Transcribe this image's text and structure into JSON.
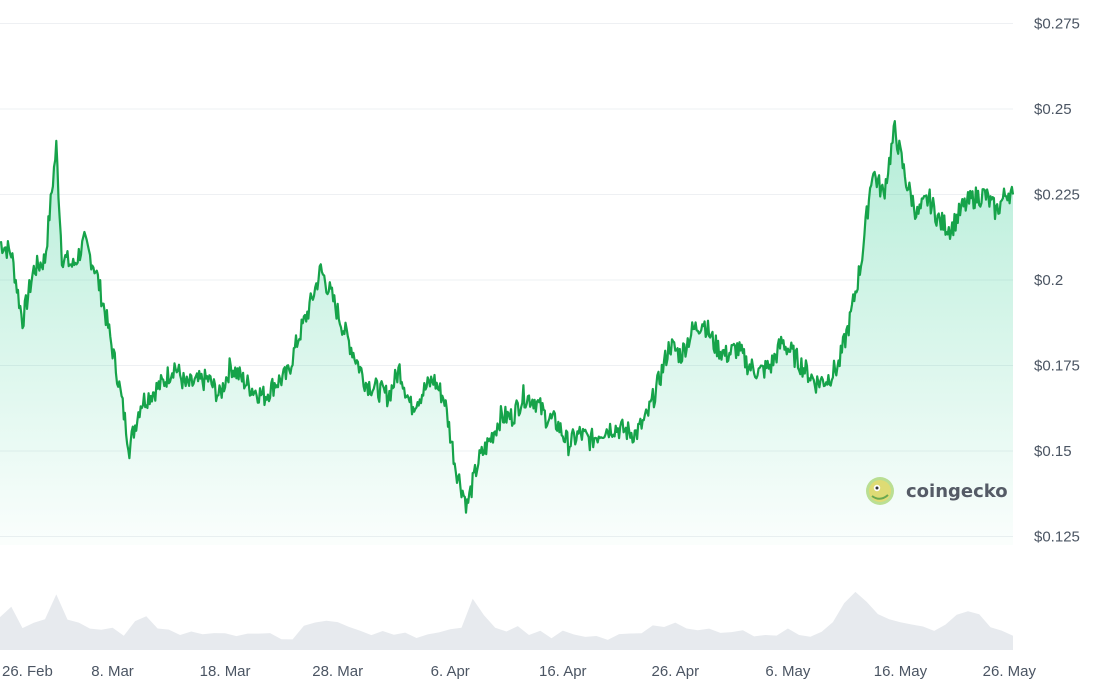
{
  "chart_data": {
    "type": "area",
    "title": "",
    "xlabel": "",
    "ylabel": "",
    "y_axis_position": "right",
    "y_ticks": [
      "$0.275",
      "$0.25",
      "$0.225",
      "$0.2",
      "$0.175",
      "$0.15",
      "$0.125"
    ],
    "y_tick_values": [
      0.275,
      0.25,
      0.225,
      0.2,
      0.175,
      0.15,
      0.125
    ],
    "ylim": [
      0.1225,
      0.2775
    ],
    "x_ticks": [
      "26. Feb",
      "8. Mar",
      "18. Mar",
      "28. Mar",
      "6. Apr",
      "16. Apr",
      "26. Apr",
      "6. May",
      "16. May",
      "26. May"
    ],
    "x_tick_days": [
      0,
      10,
      20,
      30,
      40,
      50,
      60,
      70,
      80,
      90
    ],
    "xlim_days": [
      0,
      90
    ],
    "grid": true,
    "colors": {
      "line": "#16a34a",
      "fill_top": "#16c784",
      "volume": "#e7eaee",
      "grid": "#eef0f3"
    },
    "series": [
      {
        "x_days": [
          0,
          1,
          2,
          3,
          4,
          5,
          5.5,
          6.5,
          7.5,
          8.5,
          9.5,
          10.5,
          11.5,
          12.5,
          13.5,
          14.5,
          15.5,
          16.5,
          17.5,
          18.5,
          19.5,
          20.5,
          21.5,
          22.5,
          23.5,
          24.5,
          25.5,
          26.5,
          27.5,
          28.5,
          29.5,
          30.5,
          31.5,
          32.5,
          33.5,
          34.5,
          35.5,
          36.5,
          37.5,
          38.5,
          39.5,
          40.5,
          41.5,
          42.5,
          43.5,
          44.5,
          45.5,
          46.5,
          47.5,
          48.5,
          49.5,
          50.5,
          51.5,
          52.5,
          53.5,
          54.5,
          55.5,
          56.5,
          57.5,
          58.5,
          59.5,
          60.5,
          61.5,
          62.5,
          63.5,
          64.5,
          65.5,
          66.5,
          67.5,
          68.5,
          69.5,
          70.5,
          71.5,
          72.5,
          73.5,
          74.5,
          75.5,
          76.5,
          77.5,
          78.5,
          79.5,
          80.5,
          81.5,
          82.5,
          83.5,
          84.5,
          85.5,
          86.5,
          87.5,
          88.5,
          89.5,
          90
        ],
        "values": [
          0.211,
          0.208,
          0.188,
          0.203,
          0.206,
          0.239,
          0.207,
          0.204,
          0.211,
          0.203,
          0.188,
          0.171,
          0.151,
          0.164,
          0.167,
          0.17,
          0.175,
          0.169,
          0.17,
          0.171,
          0.166,
          0.175,
          0.171,
          0.168,
          0.166,
          0.17,
          0.172,
          0.183,
          0.192,
          0.203,
          0.195,
          0.186,
          0.178,
          0.17,
          0.168,
          0.166,
          0.174,
          0.163,
          0.167,
          0.171,
          0.165,
          0.145,
          0.134,
          0.147,
          0.153,
          0.16,
          0.16,
          0.166,
          0.165,
          0.16,
          0.158,
          0.152,
          0.155,
          0.153,
          0.156,
          0.157,
          0.156,
          0.155,
          0.16,
          0.17,
          0.181,
          0.178,
          0.185,
          0.188,
          0.181,
          0.178,
          0.18,
          0.175,
          0.173,
          0.175,
          0.182,
          0.178,
          0.174,
          0.17,
          0.171,
          0.175,
          0.188,
          0.205,
          0.232,
          0.225,
          0.244,
          0.229,
          0.219,
          0.224,
          0.217,
          0.215,
          0.221,
          0.224,
          0.225,
          0.22,
          0.226,
          0.225
        ]
      }
    ],
    "volume": {
      "x_days": [
        0,
        1,
        2,
        3,
        4,
        5,
        6,
        7,
        8,
        9,
        10,
        11,
        12,
        13,
        14,
        15,
        16,
        17,
        18,
        19,
        20,
        21,
        22,
        23,
        24,
        25,
        26,
        27,
        28,
        29,
        30,
        31,
        32,
        33,
        34,
        35,
        36,
        37,
        38,
        39,
        40,
        41,
        42,
        43,
        44,
        45,
        46,
        47,
        48,
        49,
        50,
        51,
        52,
        53,
        54,
        55,
        56,
        57,
        58,
        59,
        60,
        61,
        62,
        63,
        64,
        65,
        66,
        67,
        68,
        69,
        70,
        71,
        72,
        73,
        74,
        75,
        76,
        77,
        78,
        79,
        80,
        81,
        82,
        83,
        84,
        85,
        86,
        87,
        88,
        89,
        90
      ],
      "values": [
        0.55,
        0.75,
        0.45,
        0.5,
        0.6,
        1.0,
        0.6,
        0.55,
        0.35,
        0.4,
        0.35,
        0.3,
        0.55,
        0.65,
        0.45,
        0.35,
        0.3,
        0.3,
        0.25,
        0.3,
        0.25,
        0.3,
        0.3,
        0.25,
        0.25,
        0.2,
        0.25,
        0.4,
        0.45,
        0.5,
        0.55,
        0.45,
        0.35,
        0.3,
        0.3,
        0.25,
        0.3,
        0.25,
        0.25,
        0.3,
        0.35,
        0.45,
        0.9,
        0.6,
        0.45,
        0.35,
        0.4,
        0.3,
        0.3,
        0.25,
        0.3,
        0.25,
        0.25,
        0.25,
        0.2,
        0.25,
        0.3,
        0.35,
        0.4,
        0.45,
        0.5,
        0.45,
        0.4,
        0.35,
        0.3,
        0.3,
        0.35,
        0.3,
        0.3,
        0.3,
        0.35,
        0.3,
        0.3,
        0.35,
        0.55,
        0.85,
        1.0,
        0.9,
        0.7,
        0.6,
        0.55,
        0.5,
        0.45,
        0.4,
        0.5,
        0.6,
        0.7,
        0.65,
        0.45,
        0.3,
        0.25
      ]
    }
  },
  "watermark": {
    "brand": "coingecko",
    "icon": "gecko-logo-icon"
  }
}
